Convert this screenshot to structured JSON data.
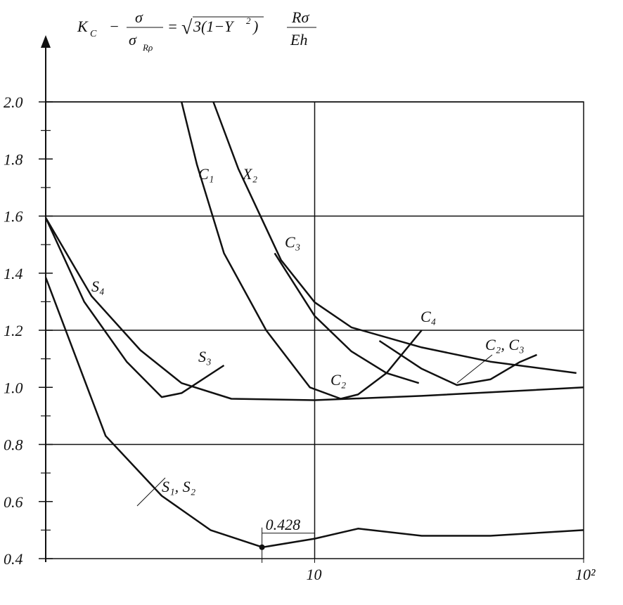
{
  "chart_data": {
    "type": "line",
    "title_parts": [
      "K",
      "C",
      "−",
      "σ",
      "σ",
      "Rρ",
      "=",
      "√",
      "3(1−Y",
      "2",
      ")",
      "Rσ",
      "Eh"
    ],
    "xscale": "log",
    "xlim": [
      1,
      100
    ],
    "xticks": [
      10,
      {
        "value": 100,
        "label": "10²"
      }
    ],
    "ylim": [
      0.4,
      2.0
    ],
    "yticks": [
      0.4,
      0.6,
      0.8,
      {
        "value": 1.0,
        "label": "1.0"
      },
      1.2,
      1.4,
      1.6,
      1.8,
      {
        "value": 2.0,
        "label": "2.0"
      }
    ],
    "ygrid": [
      0.8,
      1.2,
      1.6,
      2.0
    ],
    "xgrid": [
      10
    ],
    "color": "#111111",
    "series": [
      {
        "name": "S₁, S₂",
        "x": [
          1,
          1.67,
          2.7,
          4.1,
          6.4,
          10,
          14.5,
          25,
          45,
          100
        ],
        "values": [
          1.385,
          0.83,
          0.62,
          0.5,
          0.44,
          0.47,
          0.505,
          0.48,
          0.48,
          0.5
        ]
      },
      {
        "name": "S₄",
        "x": [
          1,
          1.48,
          2.25,
          3.2,
          4.9,
          10,
          25,
          100
        ],
        "values": [
          1.594,
          1.32,
          1.13,
          1.015,
          0.96,
          0.955,
          0.97,
          1.0
        ]
      },
      {
        "name": "S₃",
        "x": [
          1,
          1.39,
          2.0,
          2.7,
          3.2,
          4.6
        ],
        "values": [
          1.594,
          1.3,
          1.09,
          0.966,
          0.98,
          1.077
        ]
      },
      {
        "name": "C₁",
        "x": [
          3.2,
          3.65,
          4.6,
          6.6,
          9.6,
          12.5
        ],
        "values": [
          2.0,
          1.78,
          1.47,
          1.2,
          1.0,
          0.96
        ]
      },
      {
        "name": "C₄",
        "x": [
          12.5,
          14.5,
          18.5,
          25
        ],
        "values": [
          0.96,
          0.975,
          1.05,
          1.2
        ]
      },
      {
        "name": "X₂",
        "x": [
          4.2,
          5.2,
          7.5,
          10,
          13.7,
          25,
          45,
          94
        ],
        "values": [
          2.0,
          1.766,
          1.446,
          1.298,
          1.21,
          1.14,
          1.09,
          1.05
        ]
      },
      {
        "name": "C₃",
        "x": [
          7.1,
          10,
          13.7,
          18.5,
          24.4
        ],
        "values": [
          1.47,
          1.25,
          1.126,
          1.05,
          1.015
        ]
      },
      {
        "name": "C₂, C₃",
        "x": [
          17.4,
          25,
          33.8,
          45,
          58,
          67
        ],
        "values": [
          1.163,
          1.065,
          1.008,
          1.028,
          1.089,
          1.114
        ]
      }
    ],
    "series_label": "C₂",
    "annotation": {
      "text": "0.428",
      "x": 6.37,
      "y": 0.44
    }
  }
}
